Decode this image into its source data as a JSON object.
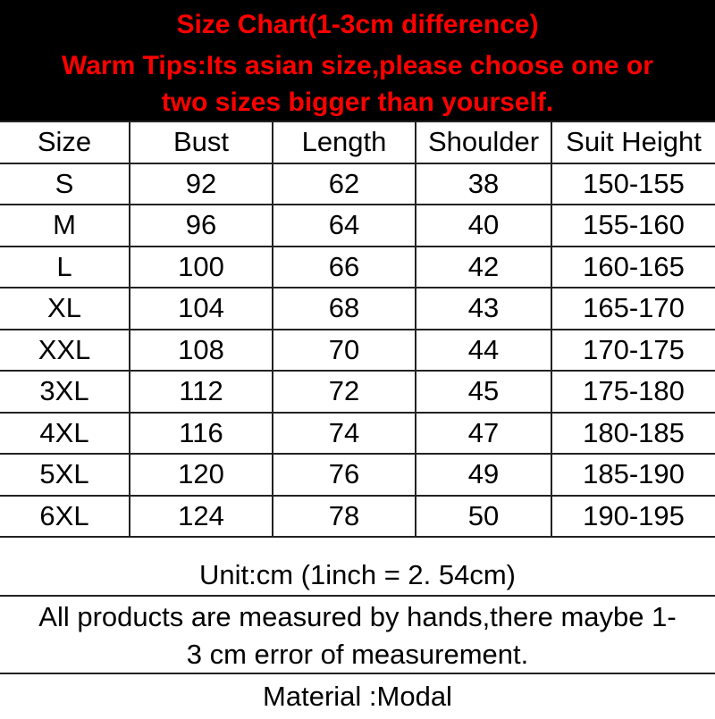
{
  "header": {
    "title": "Size Chart(1-3cm difference)",
    "tip_line1": "Warm Tips:Its asian size,please choose one or",
    "tip_line2": "two sizes bigger than yourself.",
    "text_color": "#ff0000",
    "background": "#000000"
  },
  "table": {
    "columns": [
      "Size",
      "Bust",
      "Length",
      "Shoulder",
      "Suit Height"
    ],
    "rows": [
      [
        "S",
        "92",
        "62",
        "38",
        "150-155"
      ],
      [
        "M",
        "96",
        "64",
        "40",
        "155-160"
      ],
      [
        "L",
        "100",
        "66",
        "42",
        "160-165"
      ],
      [
        "XL",
        "104",
        "68",
        "43",
        "165-170"
      ],
      [
        "XXL",
        "108",
        "70",
        "44",
        "170-175"
      ],
      [
        "3XL",
        "112",
        "72",
        "45",
        "175-180"
      ],
      [
        "4XL",
        "116",
        "74",
        "47",
        "180-185"
      ],
      [
        "5XL",
        "120",
        "76",
        "49",
        "185-190"
      ],
      [
        "6XL",
        "124",
        "78",
        "50",
        "190-195"
      ]
    ]
  },
  "footer": {
    "unit": "Unit:cm (1inch = 2. 54cm)",
    "note_line1": "All products are measured by hands,there maybe 1-",
    "note_line2": "3 cm error of measurement.",
    "material": "Material :Modal"
  }
}
